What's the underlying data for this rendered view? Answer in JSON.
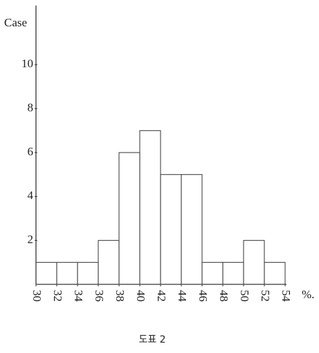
{
  "chart_data": {
    "type": "histogram",
    "caption": "도표 2",
    "ylabel": "Case",
    "xunit": "%.",
    "bins": [
      30,
      32,
      34,
      36,
      38,
      40,
      42,
      44,
      46,
      48,
      50,
      52,
      54
    ],
    "values": [
      1,
      1,
      1,
      2,
      6,
      7,
      5,
      5,
      1,
      1,
      2,
      1
    ],
    "xlim": [
      30,
      54
    ],
    "ylim": [
      0,
      12
    ],
    "xticks": [
      30,
      32,
      34,
      36,
      38,
      40,
      42,
      44,
      46,
      48,
      50,
      52,
      54
    ],
    "yticks": [
      2,
      4,
      6,
      8,
      10
    ]
  }
}
